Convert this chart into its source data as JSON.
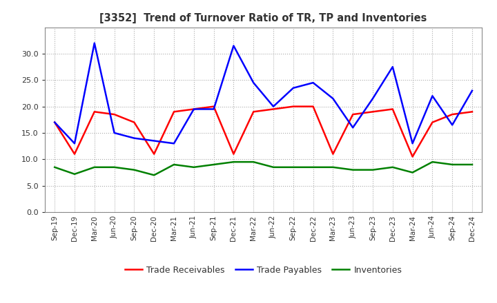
{
  "title": "[3352]  Trend of Turnover Ratio of TR, TP and Inventories",
  "x_labels": [
    "Sep-19",
    "Dec-19",
    "Mar-20",
    "Jun-20",
    "Sep-20",
    "Dec-20",
    "Mar-21",
    "Jun-21",
    "Sep-21",
    "Dec-21",
    "Mar-22",
    "Jun-22",
    "Sep-22",
    "Dec-22",
    "Mar-23",
    "Jun-23",
    "Sep-23",
    "Dec-23",
    "Mar-24",
    "Jun-24",
    "Sep-24",
    "Dec-24"
  ],
  "trade_receivables": [
    17.0,
    11.0,
    19.0,
    18.5,
    17.0,
    11.0,
    19.0,
    19.5,
    20.0,
    11.0,
    19.0,
    19.5,
    20.0,
    20.0,
    11.0,
    18.5,
    19.0,
    19.5,
    10.5,
    17.0,
    18.5,
    19.0
  ],
  "trade_payables": [
    17.0,
    13.0,
    32.0,
    15.0,
    14.0,
    13.5,
    13.0,
    19.5,
    19.5,
    31.5,
    24.5,
    20.0,
    23.5,
    24.5,
    21.5,
    16.0,
    21.5,
    27.5,
    13.0,
    22.0,
    16.5,
    23.0
  ],
  "inventories": [
    8.5,
    7.2,
    8.5,
    8.5,
    8.0,
    7.0,
    9.0,
    8.5,
    9.0,
    9.5,
    9.5,
    8.5,
    8.5,
    8.5,
    8.5,
    8.0,
    8.0,
    8.5,
    7.5,
    9.5,
    9.0,
    9.0
  ],
  "ylim": [
    0.0,
    35.0
  ],
  "yticks": [
    0.0,
    5.0,
    10.0,
    15.0,
    20.0,
    25.0,
    30.0
  ],
  "line_color_tr": "#FF0000",
  "line_color_tp": "#0000FF",
  "line_color_inv": "#008000",
  "legend_labels": [
    "Trade Receivables",
    "Trade Payables",
    "Inventories"
  ],
  "background_color": "#FFFFFF",
  "grid_color": "#AAAAAA"
}
